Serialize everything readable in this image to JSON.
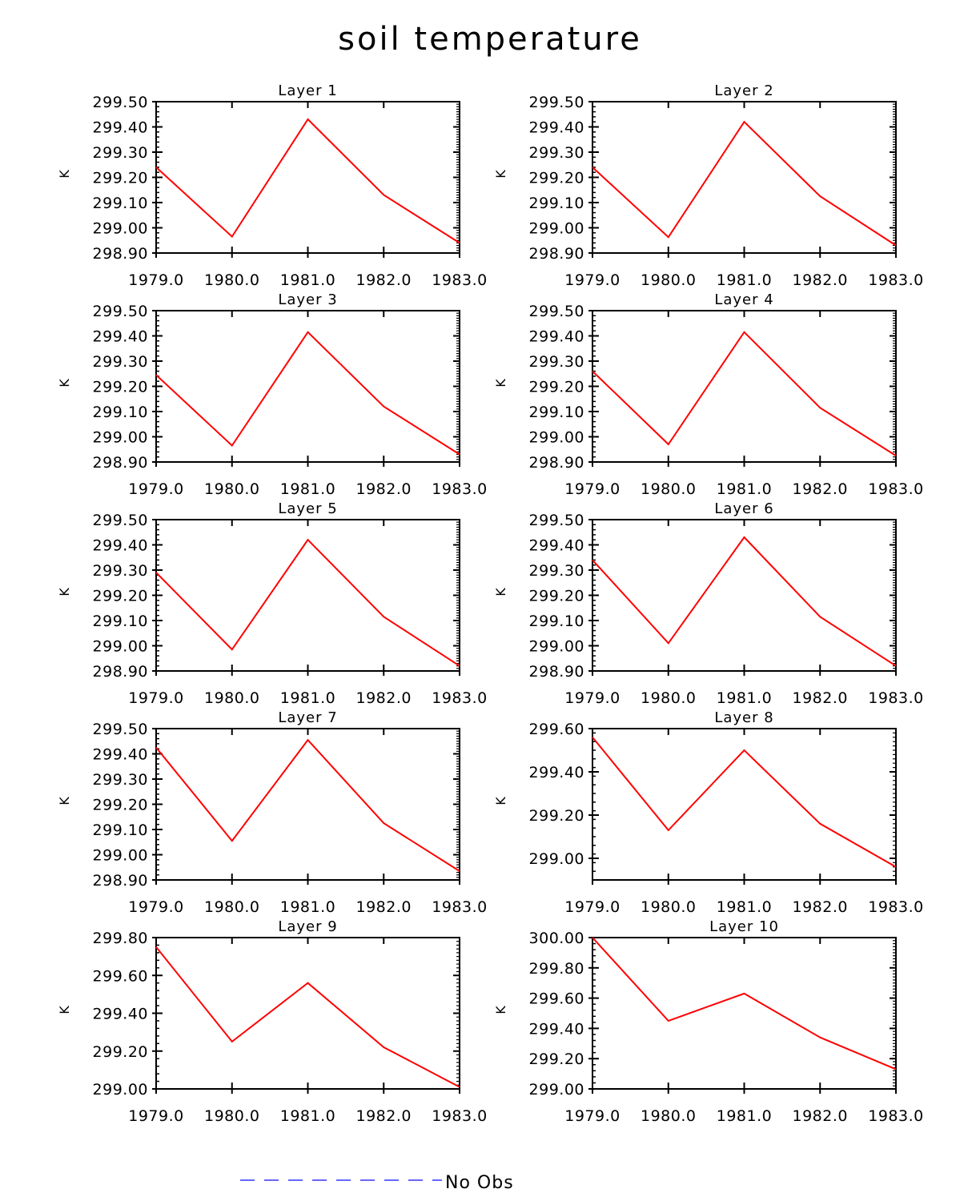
{
  "title": "soil temperature",
  "legend": {
    "label": "No Obs",
    "line_color": "#3333ff",
    "line_style": "dashed"
  },
  "series_color": "#ff0000",
  "chart_data": [
    {
      "type": "line",
      "title": "Layer 1",
      "ylabel": "K",
      "x": [
        1979,
        1980,
        1981,
        1982,
        1983
      ],
      "x_ticks": [
        "1979.0",
        "1980.0",
        "1981.0",
        "1982.0",
        "1983.0"
      ],
      "xlim": [
        1979,
        1983
      ],
      "ylim": [
        298.9,
        299.5
      ],
      "y_major": 0.1,
      "y_decimals": 2,
      "values": [
        299.24,
        298.965,
        299.43,
        299.13,
        298.94
      ]
    },
    {
      "type": "line",
      "title": "Layer 2",
      "ylabel": "K",
      "x": [
        1979,
        1980,
        1981,
        1982,
        1983
      ],
      "x_ticks": [
        "1979.0",
        "1980.0",
        "1981.0",
        "1982.0",
        "1983.0"
      ],
      "xlim": [
        1979,
        1983
      ],
      "ylim": [
        298.9,
        299.5
      ],
      "y_major": 0.1,
      "y_decimals": 2,
      "values": [
        299.24,
        298.963,
        299.42,
        299.125,
        298.93
      ]
    },
    {
      "type": "line",
      "title": "Layer 3",
      "ylabel": "K",
      "x": [
        1979,
        1980,
        1981,
        1982,
        1983
      ],
      "x_ticks": [
        "1979.0",
        "1980.0",
        "1981.0",
        "1982.0",
        "1983.0"
      ],
      "xlim": [
        1979,
        1983
      ],
      "ylim": [
        298.9,
        299.5
      ],
      "y_major": 0.1,
      "y_decimals": 2,
      "values": [
        299.245,
        298.965,
        299.415,
        299.12,
        298.93
      ]
    },
    {
      "type": "line",
      "title": "Layer 4",
      "ylabel": "K",
      "x": [
        1979,
        1980,
        1981,
        1982,
        1983
      ],
      "x_ticks": [
        "1979.0",
        "1980.0",
        "1981.0",
        "1982.0",
        "1983.0"
      ],
      "xlim": [
        1979,
        1983
      ],
      "ylim": [
        298.9,
        299.5
      ],
      "y_major": 0.1,
      "y_decimals": 2,
      "values": [
        299.26,
        298.97,
        299.415,
        299.115,
        298.925
      ]
    },
    {
      "type": "line",
      "title": "Layer 5",
      "ylabel": "K",
      "x": [
        1979,
        1980,
        1981,
        1982,
        1983
      ],
      "x_ticks": [
        "1979.0",
        "1980.0",
        "1981.0",
        "1982.0",
        "1983.0"
      ],
      "xlim": [
        1979,
        1983
      ],
      "ylim": [
        298.9,
        299.5
      ],
      "y_major": 0.1,
      "y_decimals": 2,
      "values": [
        299.29,
        298.985,
        299.42,
        299.115,
        298.92
      ]
    },
    {
      "type": "line",
      "title": "Layer 6",
      "ylabel": "K",
      "x": [
        1979,
        1980,
        1981,
        1982,
        1983
      ],
      "x_ticks": [
        "1979.0",
        "1980.0",
        "1981.0",
        "1982.0",
        "1983.0"
      ],
      "xlim": [
        1979,
        1983
      ],
      "ylim": [
        298.9,
        299.5
      ],
      "y_major": 0.1,
      "y_decimals": 2,
      "values": [
        299.34,
        299.01,
        299.43,
        299.115,
        298.92
      ]
    },
    {
      "type": "line",
      "title": "Layer 7",
      "ylabel": "K",
      "x": [
        1979,
        1980,
        1981,
        1982,
        1983
      ],
      "x_ticks": [
        "1979.0",
        "1980.0",
        "1981.0",
        "1982.0",
        "1983.0"
      ],
      "xlim": [
        1979,
        1983
      ],
      "ylim": [
        298.9,
        299.5
      ],
      "y_major": 0.1,
      "y_decimals": 2,
      "values": [
        299.425,
        299.055,
        299.455,
        299.125,
        298.935
      ]
    },
    {
      "type": "line",
      "title": "Layer 8",
      "ylabel": "K",
      "x": [
        1979,
        1980,
        1981,
        1982,
        1983
      ],
      "x_ticks": [
        "1979.0",
        "1980.0",
        "1981.0",
        "1982.0",
        "1983.0"
      ],
      "xlim": [
        1979,
        1983
      ],
      "ylim": [
        298.9,
        299.6
      ],
      "y_major": 0.2,
      "y_first_tick": 299.0,
      "y_decimals": 2,
      "values": [
        299.56,
        299.13,
        299.5,
        299.16,
        298.96
      ]
    },
    {
      "type": "line",
      "title": "Layer 9",
      "ylabel": "K",
      "x": [
        1979,
        1980,
        1981,
        1982,
        1983
      ],
      "x_ticks": [
        "1979.0",
        "1980.0",
        "1981.0",
        "1982.0",
        "1983.0"
      ],
      "xlim": [
        1979,
        1983
      ],
      "ylim": [
        299.0,
        299.8
      ],
      "y_major": 0.2,
      "y_decimals": 2,
      "values": [
        299.75,
        299.25,
        299.56,
        299.22,
        299.01
      ]
    },
    {
      "type": "line",
      "title": "Layer 10",
      "ylabel": "K",
      "x": [
        1979,
        1980,
        1981,
        1982,
        1983
      ],
      "x_ticks": [
        "1979.0",
        "1980.0",
        "1981.0",
        "1982.0",
        "1983.0"
      ],
      "xlim": [
        1979,
        1983
      ],
      "ylim": [
        299.0,
        300.0
      ],
      "y_major": 0.2,
      "y_decimals": 2,
      "values": [
        300.0,
        299.45,
        299.63,
        299.34,
        299.13
      ]
    }
  ]
}
